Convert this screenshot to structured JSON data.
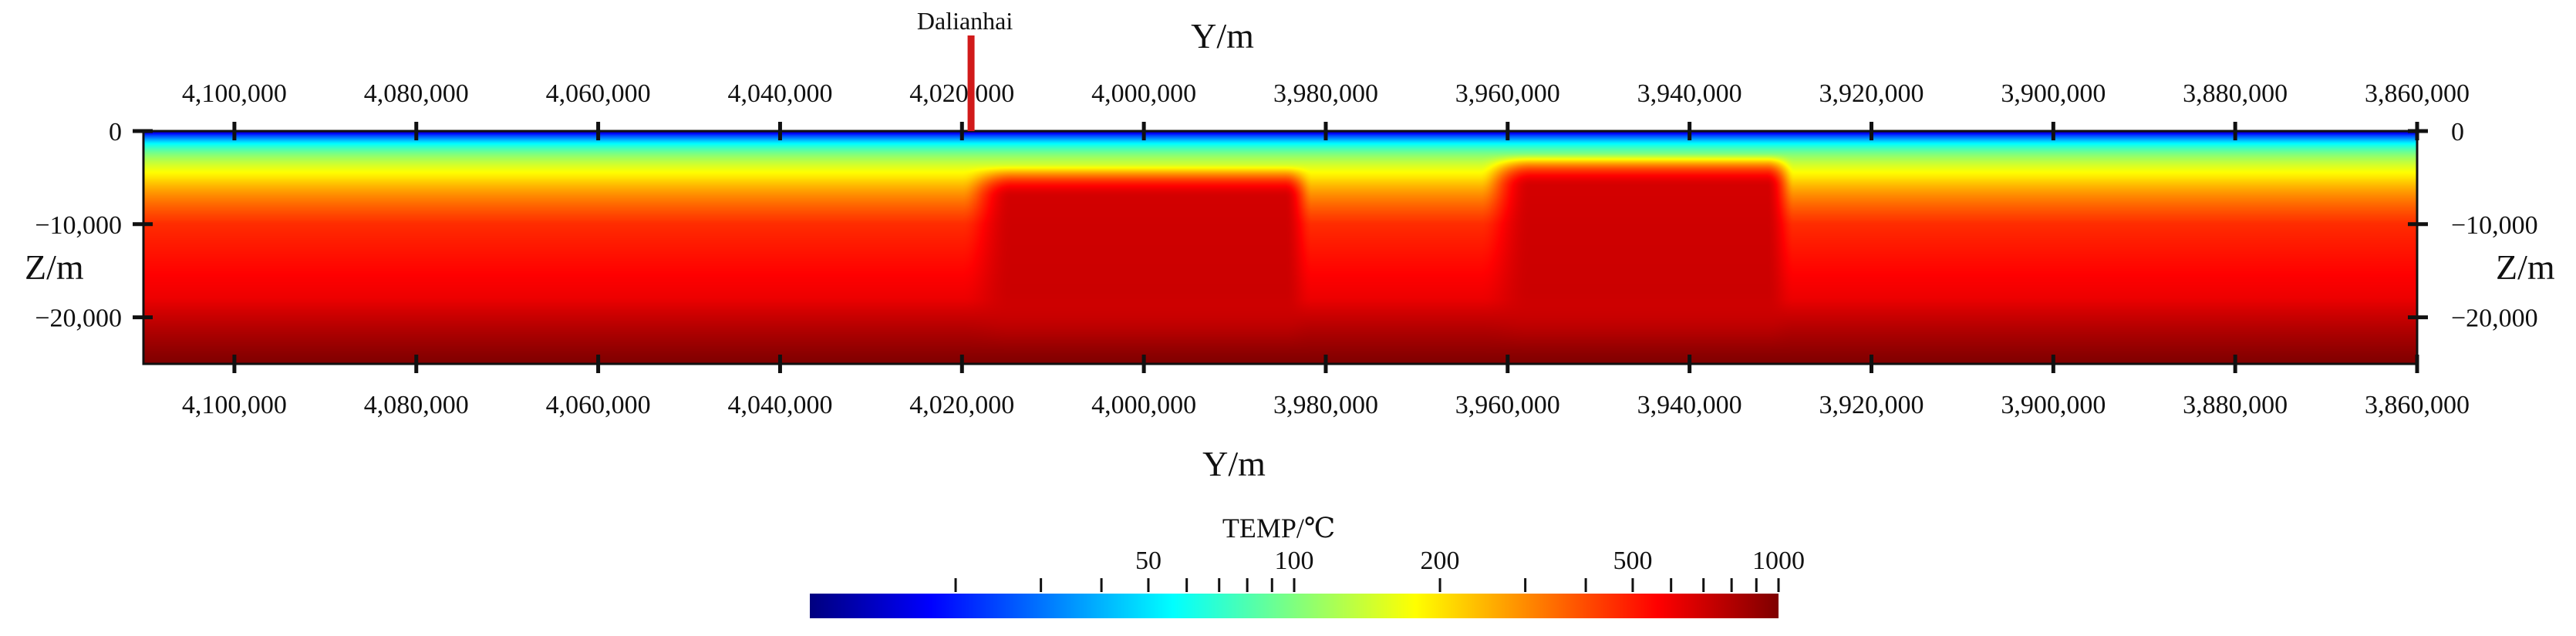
{
  "chart_data": {
    "type": "heatmap",
    "title": "",
    "xlabel": "Y/m",
    "ylabel": "Z/m",
    "x_range": [
      4110000,
      3860000
    ],
    "y_range": [
      0,
      -25000
    ],
    "x_ticks": [
      4100000,
      4080000,
      4060000,
      4040000,
      4020000,
      4000000,
      3980000,
      3960000,
      3940000,
      3920000,
      3900000,
      3880000,
      3860000
    ],
    "x_tick_labels": [
      "4,100,000",
      "4,080,000",
      "4,060,000",
      "4,040,000",
      "4,020,000",
      "4,000,000",
      "3,980,000",
      "3,960,000",
      "3,940,000",
      "3,920,000",
      "3,900,000",
      "3,880,000",
      "3,860,000"
    ],
    "y_ticks": [
      0,
      -10000,
      -20000
    ],
    "y_tick_labels": [
      "0",
      "−10,000",
      "−20,000"
    ],
    "well": {
      "name": "Dalianhai",
      "y": 4019000
    },
    "colorbar": {
      "title": "TEMP/℃",
      "scale": "log",
      "range": [
        10,
        1000
      ],
      "ticks": [
        20,
        30,
        40,
        50,
        60,
        70,
        80,
        90,
        100,
        200,
        300,
        400,
        500,
        600,
        700,
        800,
        900,
        1000
      ],
      "labels": [
        {
          "value": 50,
          "text": "50"
        },
        {
          "value": 100,
          "text": "100"
        },
        {
          "value": 200,
          "text": "200"
        },
        {
          "value": 500,
          "text": "500"
        },
        {
          "value": 1000,
          "text": "1000"
        }
      ],
      "colors": [
        "#00007f",
        "#0000ff",
        "#007fff",
        "#00ffff",
        "#7fff7f",
        "#ffff00",
        "#ff7f00",
        "#ff0000",
        "#7f0000"
      ]
    },
    "anomalies": [
      {
        "from_y": 4017000,
        "to_y": 3983000,
        "top_z": -5000,
        "peak_temp": 720
      },
      {
        "from_y": 3960000,
        "to_y": 3930000,
        "top_z": -3800,
        "peak_temp": 720
      }
    ]
  }
}
